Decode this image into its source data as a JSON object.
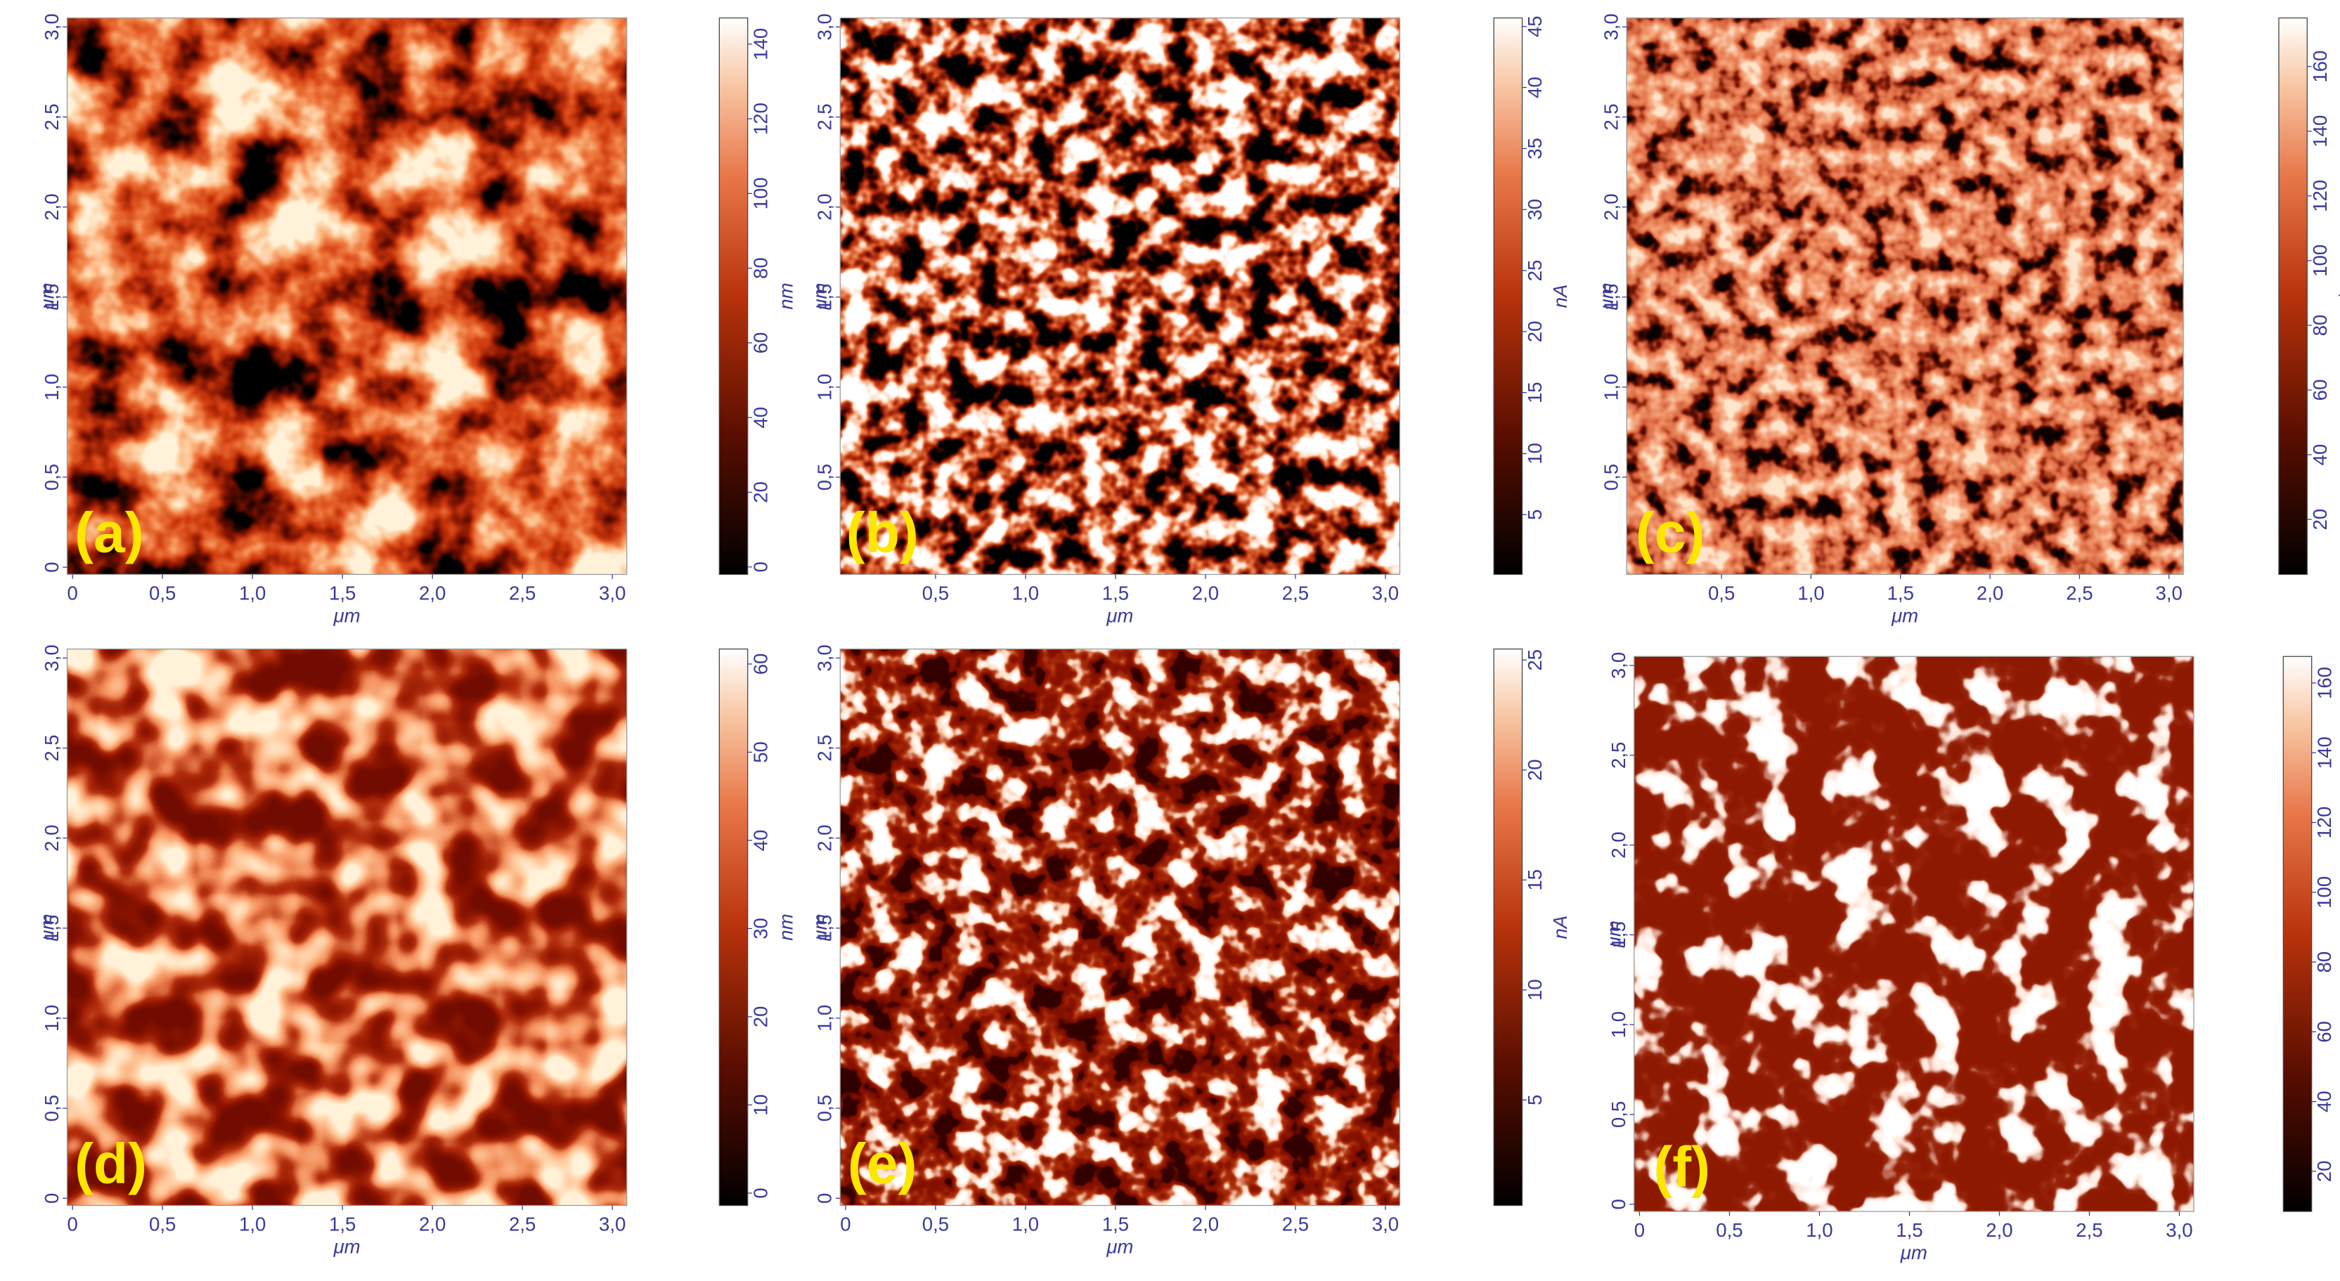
{
  "panels": [
    {
      "label": "(a)",
      "x_label": "μm",
      "y_label": "μm",
      "xlim": [
        -0.03,
        3.08
      ],
      "ylim": [
        -0.04,
        3.05
      ],
      "xticks": [
        0,
        {
          "value": 0.5,
          "label": "0,5"
        },
        {
          "value": 1,
          "label": "1,0"
        },
        {
          "value": 1.5,
          "label": "1,5"
        },
        {
          "value": 2,
          "label": "2,0"
        },
        {
          "value": 2.5,
          "label": "2,5"
        },
        {
          "value": 3,
          "label": "3,0"
        }
      ],
      "yticks": [
        0,
        {
          "value": 0.5,
          "label": "0,5"
        },
        {
          "value": 1,
          "label": "1,0"
        },
        {
          "value": 1.5,
          "label": "1,5"
        },
        {
          "value": 2,
          "label": "2,0"
        },
        {
          "value": 2.5,
          "label": "2,5"
        },
        {
          "value": 3,
          "label": "3,0"
        }
      ],
      "colorbar": {
        "unit": "nm",
        "lim": [
          -2,
          147
        ],
        "ticks": [
          0,
          20,
          40,
          60,
          80,
          100,
          120,
          140
        ]
      }
    },
    {
      "label": "(b)",
      "x_label": "μm",
      "y_label": "μm",
      "xlim": [
        -0.03,
        3.08
      ],
      "ylim": [
        -0.04,
        3.05
      ],
      "xticks": [
        {
          "value": 0.5,
          "label": "0,5"
        },
        {
          "value": 1,
          "label": "1,0"
        },
        {
          "value": 1.5,
          "label": "1,5"
        },
        {
          "value": 2,
          "label": "2,0"
        },
        {
          "value": 2.5,
          "label": "2,5"
        },
        {
          "value": 3,
          "label": "3,0"
        }
      ],
      "yticks": [
        {
          "value": 0.5,
          "label": "0,5"
        },
        {
          "value": 1,
          "label": "1,0"
        },
        {
          "value": 1.5,
          "label": "1,5"
        },
        {
          "value": 2,
          "label": "2,0"
        },
        {
          "value": 2.5,
          "label": "2,5"
        },
        {
          "value": 3,
          "label": "3,0"
        }
      ],
      "colorbar": {
        "unit": "nA",
        "lim": [
          0.1,
          45.7
        ],
        "ticks": [
          5,
          10,
          15,
          20,
          25,
          30,
          35,
          40,
          45
        ]
      }
    },
    {
      "label": "(c)",
      "x_label": "μm",
      "y_label": "μm",
      "xlim": [
        -0.03,
        3.08
      ],
      "ylim": [
        -0.04,
        3.05
      ],
      "xticks": [
        {
          "value": 0.5,
          "label": "0,5"
        },
        {
          "value": 1,
          "label": "1,0"
        },
        {
          "value": 1.5,
          "label": "1,5"
        },
        {
          "value": 2,
          "label": "2,0"
        },
        {
          "value": 2.5,
          "label": "2,5"
        },
        {
          "value": 3,
          "label": "3,0"
        }
      ],
      "yticks": [
        {
          "value": 0.5,
          "label": "0,5"
        },
        {
          "value": 1,
          "label": "1,0"
        },
        {
          "value": 1.5,
          "label": "1,5"
        },
        {
          "value": 2,
          "label": "2,0"
        },
        {
          "value": 2.5,
          "label": "2,5"
        },
        {
          "value": 3,
          "label": "3,0"
        }
      ],
      "colorbar": {
        "unit": "*",
        "lim": [
          3,
          175
        ],
        "ticks": [
          20,
          40,
          60,
          80,
          100,
          120,
          140,
          160
        ]
      }
    },
    {
      "label": "(d)",
      "x_label": "μm",
      "y_label": "μm",
      "xlim": [
        -0.03,
        3.08
      ],
      "ylim": [
        -0.04,
        3.05
      ],
      "xticks": [
        0,
        {
          "value": 0.5,
          "label": "0,5"
        },
        {
          "value": 1,
          "label": "1,0"
        },
        {
          "value": 1.5,
          "label": "1,5"
        },
        {
          "value": 2,
          "label": "2,0"
        },
        {
          "value": 2.5,
          "label": "2,5"
        },
        {
          "value": 3,
          "label": "3,0"
        }
      ],
      "yticks": [
        0,
        {
          "value": 0.5,
          "label": "0,5"
        },
        {
          "value": 1,
          "label": "1,0"
        },
        {
          "value": 1.5,
          "label": "1,5"
        },
        {
          "value": 2,
          "label": "2,0"
        },
        {
          "value": 2.5,
          "label": "2,5"
        },
        {
          "value": 3,
          "label": "3,0"
        }
      ],
      "colorbar": {
        "unit": "nm",
        "lim": [
          -1.4,
          61.7
        ],
        "ticks": [
          0,
          10,
          20,
          30,
          40,
          50,
          60
        ]
      }
    },
    {
      "label": "(e)",
      "x_label": "μm",
      "y_label": "μm",
      "xlim": [
        -0.03,
        3.08
      ],
      "ylim": [
        -0.04,
        3.05
      ],
      "xticks": [
        0,
        {
          "value": 0.5,
          "label": "0,5"
        },
        {
          "value": 1,
          "label": "1,0"
        },
        {
          "value": 1.5,
          "label": "1,5"
        },
        {
          "value": 2,
          "label": "2,0"
        },
        {
          "value": 2.5,
          "label": "2,5"
        },
        {
          "value": 3,
          "label": "3,0"
        }
      ],
      "yticks": [
        0,
        {
          "value": 0.5,
          "label": "0,5"
        },
        {
          "value": 1,
          "label": "1,0"
        },
        {
          "value": 1.5,
          "label": "1,5"
        },
        {
          "value": 2,
          "label": "2,0"
        },
        {
          "value": 2.5,
          "label": "2,5"
        },
        {
          "value": 3,
          "label": "3,0"
        }
      ],
      "colorbar": {
        "unit": "nA",
        "lim": [
          0.2,
          25.5
        ],
        "ticks": [
          5,
          10,
          15,
          20,
          25
        ]
      }
    },
    {
      "label": "(f)",
      "x_label": "μm",
      "y_label": "μm",
      "xlim": [
        -0.03,
        3.08
      ],
      "ylim": [
        -0.04,
        3.05
      ],
      "xticks": [
        0,
        {
          "value": 0.5,
          "label": "0,5"
        },
        {
          "value": 1,
          "label": "1,0"
        },
        {
          "value": 1.5,
          "label": "1,5"
        },
        {
          "value": 2,
          "label": "2,0"
        },
        {
          "value": 2.5,
          "label": "2,5"
        },
        {
          "value": 3,
          "label": "3,0"
        }
      ],
      "yticks": [
        0,
        {
          "value": 0.5,
          "label": "0,5"
        },
        {
          "value": 1,
          "label": "1,0"
        },
        {
          "value": 1.5,
          "label": "1,5"
        },
        {
          "value": 2,
          "label": "2,0"
        },
        {
          "value": 2.5,
          "label": "2,5"
        },
        {
          "value": 3,
          "label": "3,0"
        }
      ],
      "colorbar": {
        "unit": "*",
        "lim": [
          8.5,
          167.6
        ],
        "ticks": [
          20,
          40,
          60,
          80,
          100,
          120,
          140,
          160
        ]
      }
    }
  ]
}
